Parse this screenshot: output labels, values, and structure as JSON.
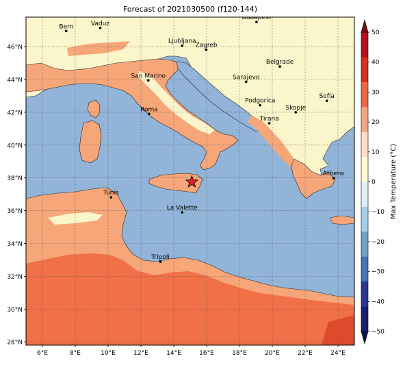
{
  "title": "Forecast of 2021030500 (f120-144)",
  "colorbar": {
    "label": "Max Temperature (°C)",
    "ticks": [
      "50",
      "40",
      "30",
      "20",
      "10",
      "0",
      "−10",
      "−20",
      "−30",
      "−40",
      "−50"
    ]
  },
  "axes": {
    "lat_labels": [
      "46°N",
      "44°N",
      "42°N",
      "40°N",
      "38°N",
      "36°N",
      "34°N",
      "32°N",
      "30°N",
      "28°N"
    ],
    "lon_labels": [
      "6°E",
      "8°E",
      "10°E",
      "12°E",
      "14°E",
      "16°E",
      "18°E",
      "20°E",
      "22°E",
      "24°E"
    ],
    "lon_range": [
      5,
      25
    ],
    "lat_range": [
      27.8,
      47.8
    ],
    "gridlines": true
  },
  "cities": [
    {
      "name": "Bern",
      "lon": 7.45,
      "lat": 46.95
    },
    {
      "name": "Vaduz",
      "lon": 9.52,
      "lat": 47.14
    },
    {
      "name": "Budapest",
      "lon": 19.04,
      "lat": 47.5
    },
    {
      "name": "Ljubljana",
      "lon": 14.51,
      "lat": 46.06
    },
    {
      "name": "Zagreb",
      "lon": 15.98,
      "lat": 45.81
    },
    {
      "name": "Belgrade",
      "lon": 20.46,
      "lat": 44.79
    },
    {
      "name": "San Marino",
      "lon": 12.45,
      "lat": 43.94
    },
    {
      "name": "Sarajevo",
      "lon": 18.41,
      "lat": 43.86
    },
    {
      "name": "Podgorica",
      "lon": 19.26,
      "lat": 42.43
    },
    {
      "name": "Sofia",
      "lon": 23.32,
      "lat": 42.7
    },
    {
      "name": "Skopje",
      "lon": 21.43,
      "lat": 42.0
    },
    {
      "name": "Roma",
      "lon": 12.5,
      "lat": 41.9
    },
    {
      "name": "Tirana",
      "lon": 19.82,
      "lat": 41.33
    },
    {
      "name": "Athens",
      "lon": 23.73,
      "lat": 37.98
    },
    {
      "name": "Tunis",
      "lon": 10.18,
      "lat": 36.81
    },
    {
      "name": "La Valette",
      "lon": 14.51,
      "lat": 35.9
    },
    {
      "name": "Tripoli",
      "lon": 13.19,
      "lat": 32.89
    }
  ],
  "marker": {
    "symbol": "star",
    "lon": 15.1,
    "lat": 37.75,
    "color": "#e8202a"
  },
  "colors": {
    "sea": "#91b4d8",
    "cold_land": "#fbf5cb",
    "mild_land": "#f6a679",
    "warm_land": "#f07047",
    "hot_land": "#e04a2c",
    "colorbar_bands": [
      "#b3101f",
      "#d7301f",
      "#ef6548",
      "#f4a582",
      "#fddbc7",
      "#fff8d0",
      "#deeef7",
      "#a6cde3",
      "#6fa3c8",
      "#4575b4",
      "#2c3791",
      "#1c1f6b"
    ]
  }
}
